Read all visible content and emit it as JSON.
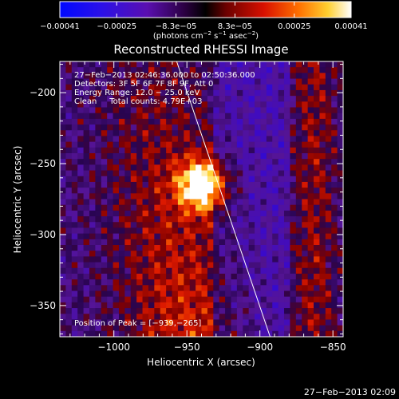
{
  "chart_data": {
    "type": "heatmap",
    "title": "Reconstructed RHESSI Image",
    "xlabel": "Heliocentric X (arcsec)",
    "ylabel": "Heliocentric Y (arcsec)",
    "xlim": [
      -1037,
      -843
    ],
    "ylim": [
      -372,
      -178
    ],
    "x_ticks": [
      -1000,
      -950,
      -900,
      -850
    ],
    "x_tick_labels": [
      "−1000",
      "−950",
      "−900",
      "−850"
    ],
    "y_ticks": [
      -350,
      -300,
      -250,
      -200
    ],
    "y_tick_labels": [
      "−350",
      "−300",
      "−250",
      "−200"
    ],
    "colorbar": {
      "range": [
        -0.00041,
        0.00041
      ],
      "tick_values": [
        -0.00041,
        -0.00025,
        -8.3e-05,
        8.3e-05,
        0.00025,
        0.00041
      ],
      "tick_labels": [
        "−0.00041",
        "−0.00025",
        "−8.3e−05",
        "8.3e−05",
        "0.00025",
        "0.00041"
      ],
      "unit_text": "(photons cm",
      "unit_exp1": "−2",
      "unit_mid": " s",
      "unit_exp2": "−1",
      "unit_end": " asec",
      "unit_exp3": "−2",
      "unit_close": ")"
    },
    "annotations": {
      "time_range": "27−Feb−2013 02:46:36.000 to 02:50:36.000",
      "detectors": "Detectors: 3F 5F 6F 7F 8F 9F, Att 0",
      "energy": "Energy Range: 12.0 − 25.0 keV",
      "clean": "Clean     Total counts: 4.79E+03",
      "peak": "Position of Peak = [−939,−265]"
    },
    "peak": [
      -939,
      -265
    ],
    "limb_line": [
      [
        -957,
        -178
      ],
      [
        -893,
        -372
      ]
    ],
    "timestamp": "27−Feb−2013 02:09"
  }
}
